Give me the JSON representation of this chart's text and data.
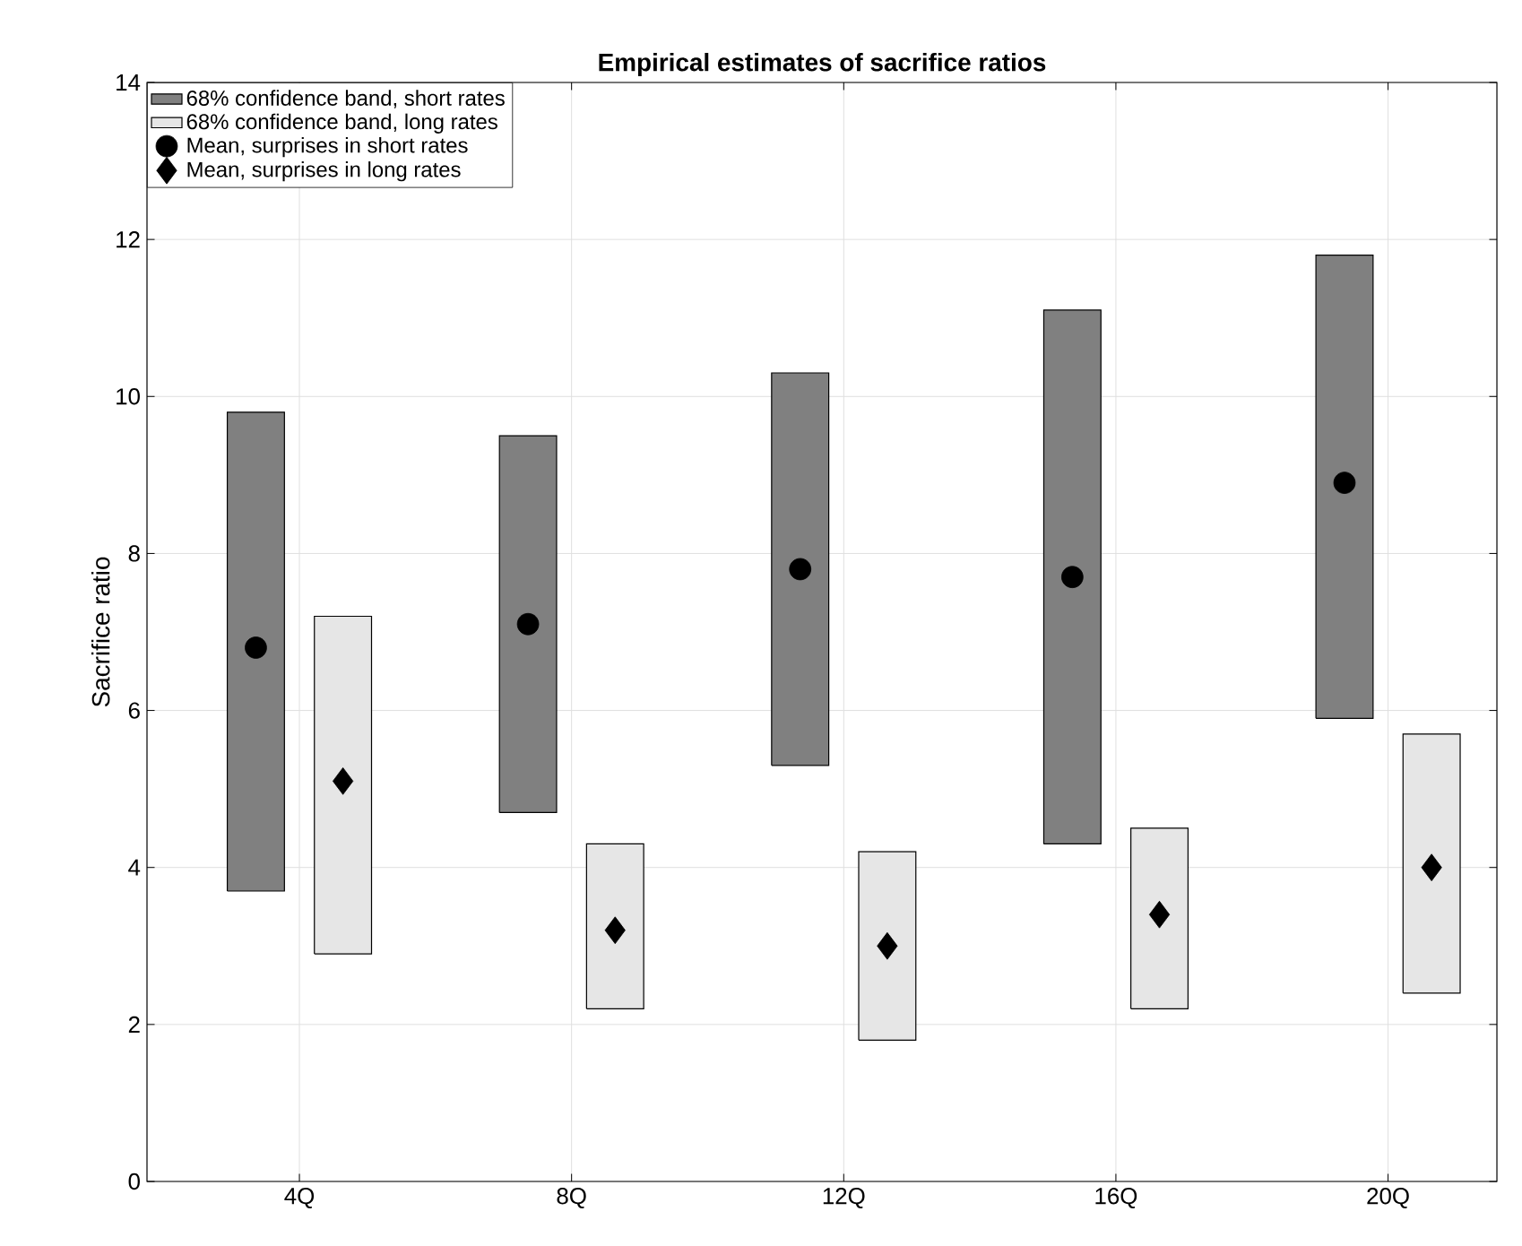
{
  "chart_data": {
    "type": "bar",
    "title": "Empirical estimates of sacrifice ratios",
    "ylabel": "Sacrifice ratio",
    "categories": [
      "4Q",
      "8Q",
      "12Q",
      "16Q",
      "20Q"
    ],
    "series": [
      {
        "name": "68% confidence band, short rates",
        "color": "#808080",
        "base": [
          3.7,
          4.7,
          5.3,
          4.3,
          5.9
        ],
        "values": [
          6.1,
          4.8,
          5.0,
          6.8,
          5.9
        ]
      },
      {
        "name": "68% confidence band, long rates",
        "color": "#e6e6e6",
        "base": [
          2.9,
          2.2,
          1.8,
          2.2,
          2.4
        ],
        "values": [
          4.3,
          2.1,
          2.4,
          2.3,
          3.3
        ]
      },
      {
        "name": "Mean, surprises in short rates",
        "type": "scatter",
        "marker": "circle",
        "color": "#000000",
        "x": [
          "4Q",
          "8Q",
          "12Q",
          "16Q",
          "20Q"
        ],
        "values": [
          6.8,
          7.1,
          7.8,
          7.7,
          8.9
        ]
      },
      {
        "name": "Mean, surprises in long rates",
        "type": "scatter",
        "marker": "diamond",
        "color": "#000000",
        "x": [
          "4Q",
          "8Q",
          "12Q",
          "16Q",
          "20Q"
        ],
        "values": [
          5.1,
          3.2,
          3.0,
          3.4,
          4.0
        ]
      }
    ],
    "ylim": [
      0,
      14
    ],
    "yticks": [
      0,
      2,
      4,
      6,
      8,
      10,
      12,
      14
    ],
    "grid": true,
    "legend": "top left"
  }
}
